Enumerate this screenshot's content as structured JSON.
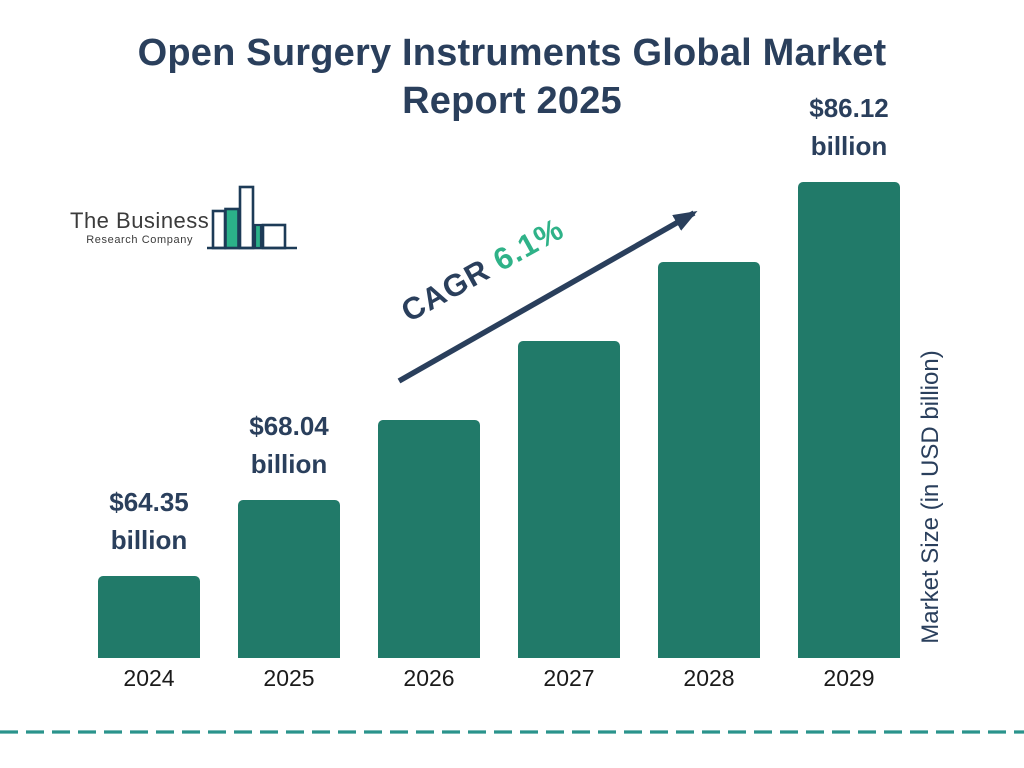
{
  "logo": {
    "line1": "The Business",
    "line2": "Research Company"
  },
  "title": "Open Surgery Instruments Global Market Report 2025",
  "annotation": {
    "cagr_label": "CAGR",
    "cagr_value": "6.1%"
  },
  "y_axis_label": "Market Size (in USD billion)",
  "chart_data": {
    "type": "bar",
    "title": "Open Surgery Instruments Global Market Report 2025",
    "categories": [
      "2024",
      "2025",
      "2026",
      "2027",
      "2028",
      "2029"
    ],
    "values": [
      64.35,
      68.04,
      72.19,
      76.59,
      81.26,
      86.12
    ],
    "labeled_values": {
      "2024": "$64.35 billion",
      "2025": "$68.04 billion",
      "2029": "$86.12 billion"
    },
    "value_labels": [
      {
        "value": "$64.35",
        "unit": "billion"
      },
      {
        "value": "$68.04",
        "unit": "billion"
      },
      null,
      null,
      null,
      {
        "value": "$86.12",
        "unit": "billion"
      }
    ],
    "cagr": "6.1%",
    "xlabel": "",
    "ylabel": "Market Size (in USD billion)",
    "legend": "none",
    "grid": "off",
    "bar_color": "#217a69",
    "label_color": "#2a3f5c",
    "axis_text_color": "#1a1a1a"
  },
  "colors": {
    "navy": "#2a3f5c",
    "bar_teal": "#217a69",
    "accent_green": "#2fb288",
    "dashed_line_teal": "#2a938c",
    "logo_text_gray": "#3b3b3b",
    "logo_fill_green": "#2bb189"
  }
}
